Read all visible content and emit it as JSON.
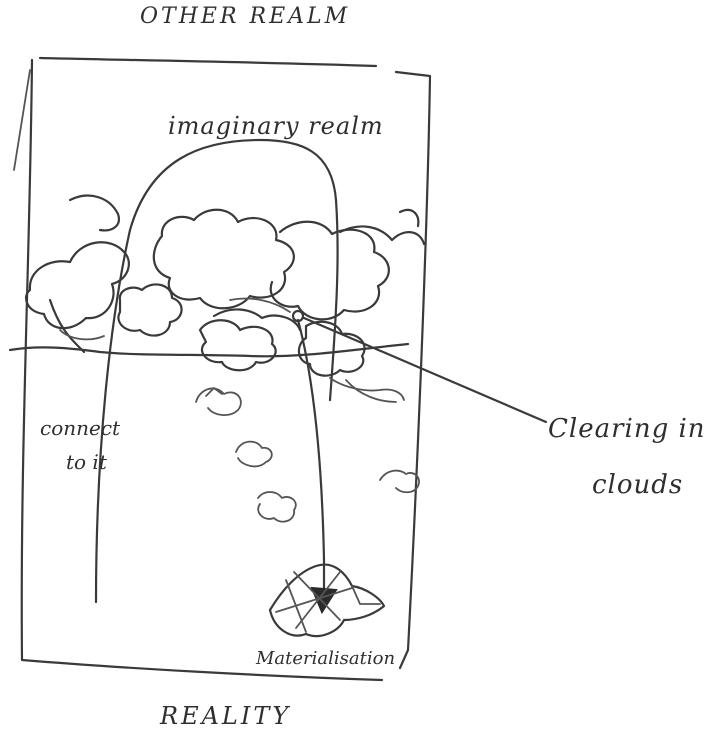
{
  "labels": {
    "other_realm": "OTHER REALM",
    "imaginary_realm": "imaginary realm",
    "connect_line1": "connect",
    "connect_line2": "to it",
    "clearing_line1": "Clearing in",
    "clearing_line2": "clouds",
    "materialisation": "Materialisation",
    "reality": "REALITY"
  },
  "colors": {
    "ink": "#3a3a3a",
    "paper": "#ffffff"
  }
}
